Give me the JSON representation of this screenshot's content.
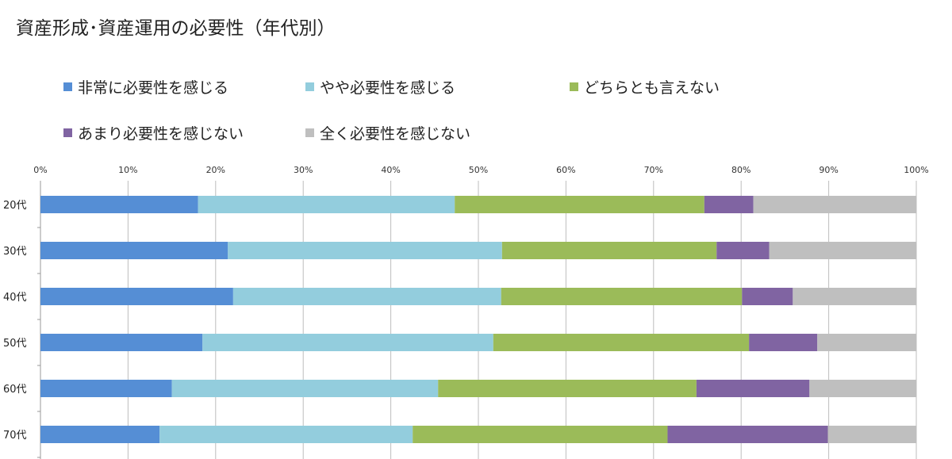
{
  "chart_data": {
    "type": "bar",
    "orientation": "horizontal",
    "stacked": "percent",
    "title": "資産形成･資産運用の必要性（年代別）",
    "categories": [
      "20代",
      "30代",
      "40代",
      "50代",
      "60代",
      "70代"
    ],
    "xlim": [
      0,
      100
    ],
    "x_ticks": [
      "0%",
      "10%",
      "20%",
      "30%",
      "40%",
      "50%",
      "60%",
      "70%",
      "80%",
      "90%",
      "100%"
    ],
    "grid": true,
    "legend_position": "top",
    "series": [
      {
        "name": "非常に必要性を感じる",
        "color": "#558ed5",
        "values": [
          18.0,
          21.4,
          22.0,
          18.5,
          15.0,
          13.6
        ]
      },
      {
        "name": "やや必要性を感じる",
        "color": "#93cddd",
        "values": [
          29.3,
          31.3,
          30.6,
          33.2,
          30.4,
          28.9
        ]
      },
      {
        "name": "どちらとも言えない",
        "color": "#9bbb59",
        "values": [
          28.5,
          24.5,
          27.5,
          29.2,
          29.5,
          29.1
        ]
      },
      {
        "name": "あまり必要性を感じない",
        "color": "#8064a2",
        "values": [
          5.6,
          6.0,
          5.8,
          7.8,
          12.9,
          18.3
        ]
      },
      {
        "name": "全く必要性を感じない",
        "color": "#bfbfbf",
        "values": [
          18.6,
          16.8,
          14.1,
          11.3,
          12.2,
          10.1
        ]
      }
    ]
  }
}
